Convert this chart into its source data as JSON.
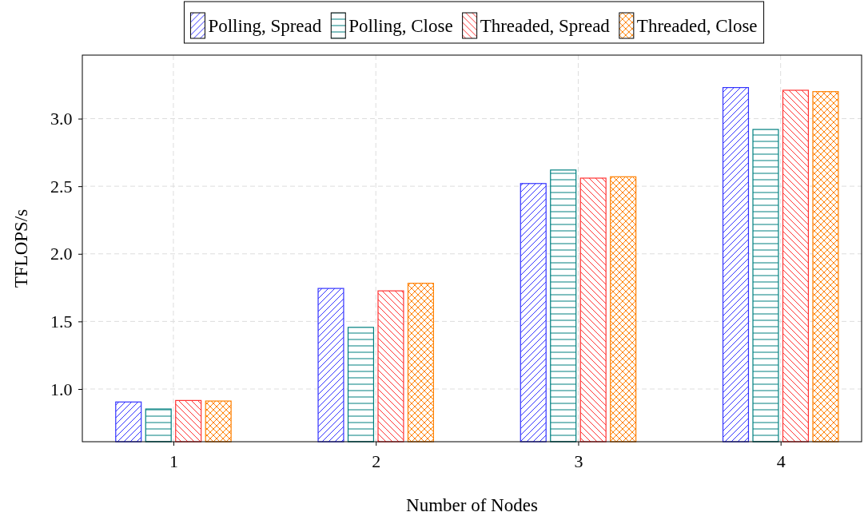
{
  "chart_data": {
    "type": "bar",
    "xlabel": "Number of Nodes",
    "ylabel": "TFLOPS/s",
    "x": [
      1,
      2,
      3,
      4
    ],
    "xlim": [
      0.55,
      4.4
    ],
    "xticks": [
      1,
      2,
      3,
      4
    ],
    "ylim": [
      0.61,
      3.47
    ],
    "yticks": [
      {
        "value": 1,
        "label": "1.0"
      },
      {
        "value": 1.5,
        "label": "1.5"
      },
      {
        "value": 2,
        "label": "2.0"
      },
      {
        "value": 2.5,
        "label": "2.5"
      },
      {
        "value": 3,
        "label": "3.0"
      }
    ],
    "grid": true,
    "legend": "top",
    "series": [
      {
        "name": "Polling, Spread",
        "color": "#3333ff",
        "values": [
          0.904,
          1.744,
          2.52,
          3.23
        ]
      },
      {
        "name": "Polling, Close",
        "color": "#008080",
        "values": [
          0.852,
          1.456,
          2.62,
          2.92
        ]
      },
      {
        "name": "Threaded, Spread",
        "color": "#ff3333",
        "values": [
          0.915,
          1.726,
          2.56,
          3.21
        ]
      },
      {
        "name": "Threaded, Close",
        "color": "#ff8000",
        "values": [
          0.911,
          1.782,
          2.57,
          3.2
        ]
      }
    ]
  }
}
